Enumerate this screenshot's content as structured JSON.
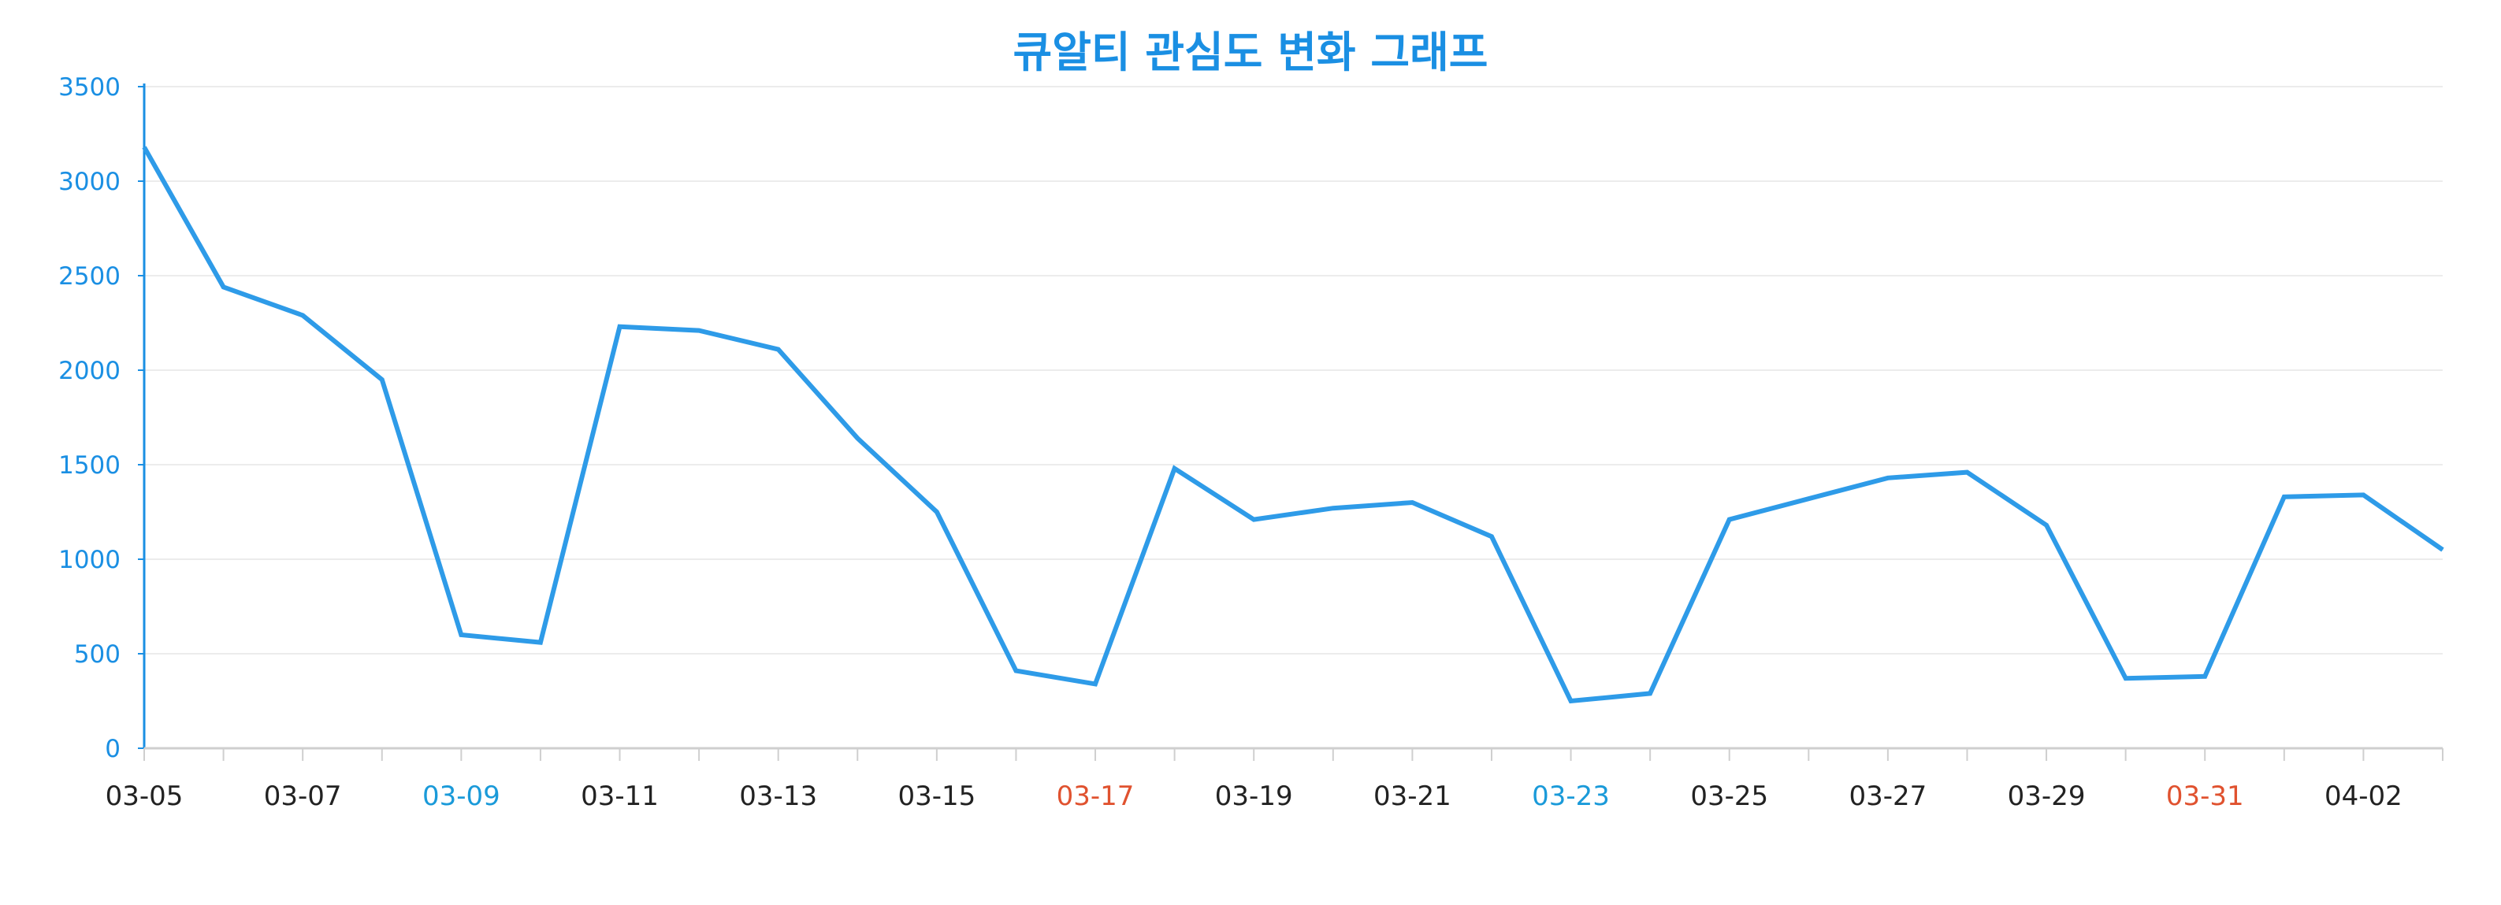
{
  "chart_data": {
    "type": "line",
    "title": "큐알티 관심도 변화 그래프",
    "xlabel": "",
    "ylabel": "",
    "ylim": [
      0,
      3500
    ],
    "y_ticks": [
      0,
      500,
      1000,
      1500,
      2000,
      2500,
      3000,
      3500
    ],
    "x": [
      "03-05",
      "03-06",
      "03-07",
      "03-08",
      "03-09",
      "03-10",
      "03-11",
      "03-12",
      "03-13",
      "03-14",
      "03-15",
      "03-16",
      "03-17",
      "03-18",
      "03-19",
      "03-20",
      "03-21",
      "03-22",
      "03-23",
      "03-24",
      "03-25",
      "03-26",
      "03-27",
      "03-28",
      "03-29",
      "03-30",
      "03-31",
      "04-01",
      "04-02",
      "04-03"
    ],
    "x_tick_labels": [
      "03-05",
      "03-07",
      "03-09",
      "03-11",
      "03-13",
      "03-15",
      "03-17",
      "03-19",
      "03-21",
      "03-23",
      "03-25",
      "03-27",
      "03-29",
      "03-31",
      "04-02"
    ],
    "saturday_labels": [
      "03-09",
      "03-23"
    ],
    "sunday_labels": [
      "03-17",
      "03-31"
    ],
    "series": [
      {
        "values": [
          3180,
          2440,
          2290,
          1950,
          600,
          560,
          2230,
          2210,
          2110,
          1640,
          1250,
          410,
          340,
          1480,
          1210,
          1270,
          1300,
          1120,
          250,
          290,
          1210,
          1320,
          1430,
          1460,
          1180,
          370,
          380,
          1330,
          1340,
          1050
        ]
      }
    ],
    "grid": true,
    "legend": "none",
    "colors": {
      "line": "#2e9be8",
      "title": "#1a8fe3",
      "y_axis": "#1a8fe3",
      "x_label_default": "#222222",
      "x_label_saturday": "#1a9ad9",
      "x_label_sunday": "#e0522f",
      "grid": "#ececec",
      "x_axis": "#cfcfcf"
    }
  }
}
